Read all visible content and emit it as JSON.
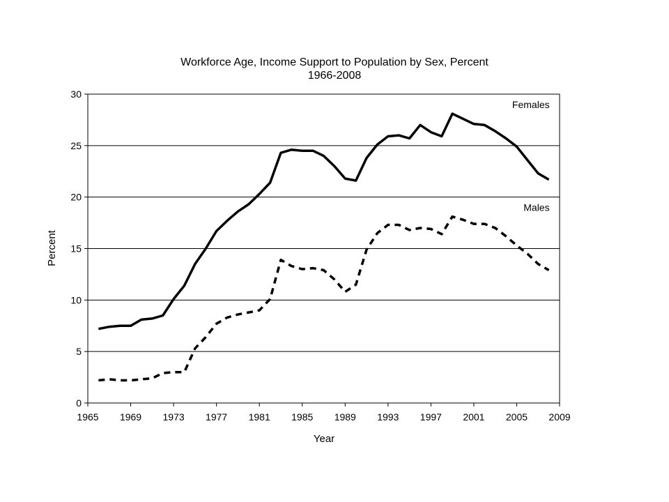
{
  "chart_data": {
    "type": "line",
    "title": "Workforce Age, Income Support to Population by Sex, Percent",
    "subtitle": "1966-2008",
    "xlabel": "Year",
    "ylabel": "Percent",
    "xlim": [
      1965,
      2009
    ],
    "ylim": [
      0,
      30
    ],
    "x_ticks": [
      1965,
      1969,
      1973,
      1977,
      1981,
      1985,
      1989,
      1993,
      1997,
      2001,
      2005,
      2009
    ],
    "y_ticks": [
      0,
      5,
      10,
      15,
      20,
      25,
      30
    ],
    "grid": "horizontal",
    "x": [
      1966,
      1967,
      1968,
      1969,
      1970,
      1971,
      1972,
      1973,
      1974,
      1975,
      1976,
      1977,
      1978,
      1979,
      1980,
      1981,
      1982,
      1983,
      1984,
      1985,
      1986,
      1987,
      1988,
      1989,
      1990,
      1991,
      1992,
      1993,
      1994,
      1995,
      1996,
      1997,
      1998,
      1999,
      2000,
      2001,
      2002,
      2003,
      2004,
      2005,
      2006,
      2007,
      2008
    ],
    "series": [
      {
        "name": "Females",
        "style": "solid",
        "color": "#000000",
        "values": [
          7.2,
          7.4,
          7.5,
          7.5,
          8.1,
          8.2,
          8.5,
          10.1,
          11.4,
          13.5,
          15.0,
          16.7,
          17.7,
          18.6,
          19.3,
          20.3,
          21.4,
          24.3,
          24.6,
          24.5,
          24.5,
          24.0,
          23.0,
          21.8,
          21.6,
          23.8,
          25.1,
          25.9,
          26.0,
          25.7,
          27.0,
          26.3,
          25.9,
          28.1,
          27.6,
          27.1,
          27.0,
          26.4,
          25.7,
          24.9,
          23.6,
          22.3,
          21.7
        ]
      },
      {
        "name": "Males",
        "style": "dashed",
        "color": "#000000",
        "values": [
          2.2,
          2.3,
          2.2,
          2.2,
          2.3,
          2.4,
          2.9,
          3.0,
          3.0,
          5.3,
          6.4,
          7.7,
          8.3,
          8.6,
          8.8,
          9.0,
          10.1,
          13.9,
          13.3,
          13.0,
          13.1,
          12.9,
          12.0,
          10.8,
          11.5,
          14.9,
          16.5,
          17.3,
          17.3,
          16.8,
          17.0,
          16.9,
          16.4,
          18.1,
          17.8,
          17.4,
          17.4,
          17.0,
          16.2,
          15.3,
          14.5,
          13.5,
          12.9
        ]
      }
    ]
  }
}
